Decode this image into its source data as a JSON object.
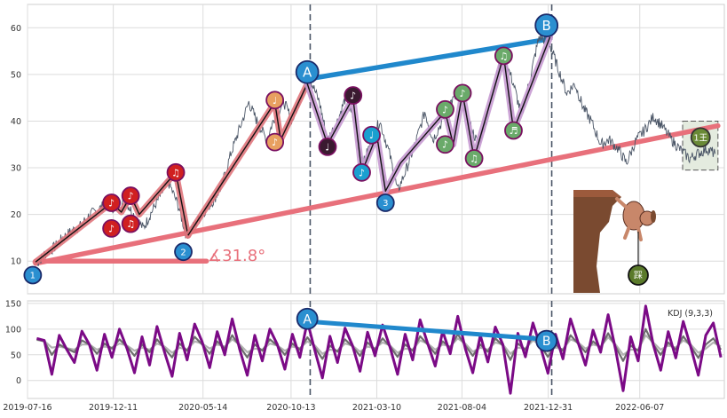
{
  "chart_data": [
    {
      "type": "line",
      "panel": "price",
      "title": "",
      "xlabel": "",
      "ylabel": "",
      "grid": true,
      "ylim": [
        3,
        65
      ],
      "yticks": [
        10,
        20,
        30,
        40,
        50,
        60
      ],
      "series": [
        {
          "role": "price",
          "color": "#4a5566",
          "x": [
            "2019-08-01",
            "2019-08-15",
            "2019-09-01",
            "2019-09-15",
            "2019-10-01",
            "2019-10-15",
            "2019-11-01",
            "2019-11-15",
            "2019-12-01",
            "2019-12-15",
            "2020-01-01",
            "2020-01-15",
            "2020-02-01",
            "2020-02-15",
            "2020-03-01",
            "2020-03-15",
            "2020-04-01",
            "2020-04-15",
            "2020-05-01",
            "2020-05-15",
            "2020-06-01",
            "2020-06-15",
            "2020-07-01",
            "2020-07-15",
            "2020-08-01",
            "2020-08-15",
            "2020-09-01",
            "2020-09-15",
            "2020-10-01",
            "2020-10-15",
            "2020-11-01",
            "2020-11-15",
            "2020-12-01",
            "2020-12-15",
            "2021-01-01",
            "2021-01-15",
            "2021-02-01",
            "2021-02-15",
            "2021-03-01",
            "2021-03-15",
            "2021-04-01",
            "2021-04-15",
            "2021-05-01",
            "2021-05-15",
            "2021-06-01",
            "2021-06-15",
            "2021-07-01",
            "2021-07-15",
            "2021-08-01",
            "2021-08-15",
            "2021-09-01",
            "2021-09-15",
            "2021-10-01",
            "2021-10-15",
            "2021-11-01",
            "2021-11-15",
            "2021-12-01",
            "2021-12-15",
            "2022-01-01",
            "2022-01-15",
            "2022-02-01",
            "2022-02-15",
            "2022-03-01",
            "2022-03-15",
            "2022-04-01",
            "2022-04-15",
            "2022-05-01",
            "2022-05-15",
            "2022-06-01",
            "2022-06-15",
            "2022-07-01",
            "2022-07-15",
            "2022-08-01",
            "2022-08-15",
            "2022-09-01",
            "2022-09-15",
            "2022-10-01",
            "2022-10-15"
          ],
          "values": [
            9.5,
            11.5,
            13,
            15,
            16.5,
            17.5,
            20,
            21,
            22.5,
            21,
            23,
            20,
            17,
            20.5,
            24,
            27,
            22,
            15.5,
            18,
            20.5,
            23,
            26,
            33,
            38,
            44,
            40,
            36,
            41,
            44,
            40,
            46,
            49,
            44,
            36,
            40,
            45,
            39,
            31,
            36,
            40,
            33,
            25,
            30,
            35,
            42,
            36,
            40,
            44,
            46,
            40,
            35,
            40,
            50,
            54,
            48,
            41,
            50,
            58,
            57,
            52,
            46,
            48,
            43,
            40,
            35,
            36,
            34,
            31,
            36,
            38,
            41,
            39,
            36,
            34,
            32,
            33,
            34,
            33
          ]
        }
      ],
      "waves": [
        {
          "role": "wave-red",
          "color": "#e0767c",
          "x": [
            "2019-07-30",
            "2019-12-08",
            "2019-12-25",
            "2020-01-10",
            "2020-01-25",
            "2020-03-28",
            "2020-04-18"
          ],
          "values": [
            9.8,
            22.5,
            20.5,
            24,
            20,
            29,
            15.5
          ]
        },
        {
          "role": "wave-red",
          "color": "#e0767c",
          "x": [
            "2020-04-18",
            "2020-09-15",
            "2020-09-25",
            "2020-11-10"
          ],
          "values": [
            15.5,
            44,
            36,
            48
          ]
        },
        {
          "role": "wave-purple",
          "color": "#c69ad1",
          "x": [
            "2020-11-10",
            "2020-12-15",
            "2021-01-28",
            "2021-02-12",
            "2021-03-10",
            "2021-03-25",
            "2021-04-20",
            "2021-07-06",
            "2021-07-20",
            "2021-08-05",
            "2021-08-25",
            "2021-10-15",
            "2021-11-01",
            "2022-01-03"
          ],
          "values": [
            48,
            35,
            45,
            29,
            37,
            25,
            31,
            42,
            35,
            46,
            32,
            54,
            38,
            58
          ]
        }
      ],
      "trendlines": [
        {
          "role": "support",
          "color": "#e8707b",
          "x": [
            "2019-07-30",
            "2022-10-20"
          ],
          "values": [
            9.5,
            39
          ]
        },
        {
          "role": "resistance",
          "color": "#2088cc",
          "x": [
            "2020-11-10",
            "2021-12-28"
          ],
          "values": [
            49,
            57.5
          ]
        },
        {
          "role": "angle-base",
          "color": "#e8707b",
          "x": [
            "2019-07-30",
            "2020-05-20"
          ],
          "values": [
            10,
            10
          ]
        }
      ],
      "vertical_lines": [
        {
          "x": "2020-11-15",
          "color": "#4a5566"
        },
        {
          "x": "2022-01-06",
          "color": "#4a5566"
        }
      ],
      "point_labels": [
        {
          "text": "A",
          "x": "2020-11-10",
          "y": 50.5,
          "color": "#2a8fd0"
        },
        {
          "text": "B",
          "x": "2021-12-28",
          "y": 60.5,
          "color": "#2a8fd0"
        },
        {
          "text": "1",
          "x": "2019-07-25",
          "y": 7,
          "color": "#2a8fd0"
        },
        {
          "text": "2",
          "x": "2020-04-10",
          "y": 12,
          "color": "#2a8fd0"
        },
        {
          "text": "3",
          "x": "2021-03-25",
          "y": 22.5,
          "color": "#2a8fd0"
        }
      ],
      "note_markers": [
        {
          "text": "♪",
          "x": "2019-12-08",
          "y": 22.5,
          "color": "#d02020"
        },
        {
          "text": "♪",
          "x": "2019-12-08",
          "y": 17,
          "color": "#d02020"
        },
        {
          "text": "♪",
          "x": "2020-01-10",
          "y": 24,
          "color": "#d02020"
        },
        {
          "text": "♫",
          "x": "2020-01-10",
          "y": 18,
          "color": "#d02020"
        },
        {
          "text": "♫",
          "x": "2020-03-28",
          "y": 29,
          "color": "#d02020"
        },
        {
          "text": "♩",
          "x": "2020-09-15",
          "y": 44.5,
          "color": "#e8a060"
        },
        {
          "text": "♪",
          "x": "2020-09-15",
          "y": 35.5,
          "color": "#e8a060"
        },
        {
          "text": "♩",
          "x": "2020-12-15",
          "y": 34.5,
          "color": "#3a1a30"
        },
        {
          "text": "♪",
          "x": "2021-01-28",
          "y": 45.5,
          "color": "#3a1a30"
        },
        {
          "text": "♪",
          "x": "2021-02-12",
          "y": 29,
          "color": "#1aa0d0"
        },
        {
          "text": "♩",
          "x": "2021-03-01",
          "y": 37,
          "color": "#1aa0d0"
        },
        {
          "text": "♪",
          "x": "2021-07-06",
          "y": 42.5,
          "color": "#6aaa6a"
        },
        {
          "text": "♪",
          "x": "2021-07-06",
          "y": 35,
          "color": "#6aaa6a"
        },
        {
          "text": "♪",
          "x": "2021-08-05",
          "y": 46,
          "color": "#6aaa6a"
        },
        {
          "text": "♫",
          "x": "2021-08-25",
          "y": 32,
          "color": "#6aaa6a"
        },
        {
          "text": "♫",
          "x": "2021-10-15",
          "y": 54,
          "color": "#6aaa6a"
        },
        {
          "text": "♬",
          "x": "2021-11-01",
          "y": 38,
          "color": "#6aaa6a"
        }
      ],
      "box": {
        "x": [
          "2022-08-20",
          "2022-10-20"
        ],
        "values": [
          29.5,
          40
        ],
        "color": "#e4ebdf"
      },
      "sticker_labels": [
        "1王",
        "踩"
      ],
      "angle_label": "∡31.8°",
      "angle_color": "#e8707b"
    },
    {
      "type": "line",
      "panel": "kdj",
      "title": "",
      "xlabel": "",
      "ylabel": "",
      "grid": true,
      "legend": "KDJ (9,3,3)",
      "legend_position": "top-right",
      "ylim": [
        -35,
        155
      ],
      "yticks": [
        0,
        50,
        100,
        150
      ],
      "x_ticks": [
        "2019-07-16",
        "2019-12-11",
        "2020-05-14",
        "2020-10-13",
        "2021-03-10",
        "2021-08-04",
        "2021-12-31",
        "2022-06-07"
      ],
      "x_range": [
        "2019-07-16",
        "2022-10-31"
      ],
      "series": [
        {
          "role": "J",
          "color": "#7b0a86",
          "x_start": "2019-08-01",
          "x_end": "2022-10-25",
          "values": [
            82,
            78,
            12,
            88,
            60,
            35,
            96,
            70,
            20,
            90,
            45,
            100,
            62,
            15,
            85,
            30,
            105,
            55,
            8,
            92,
            40,
            110,
            75,
            25,
            95,
            50,
            120,
            60,
            10,
            88,
            38,
            100,
            70,
            22,
            90,
            45,
            115,
            58,
            5,
            86,
            35,
            102,
            68,
            18,
            94,
            48,
            108,
            64,
            12,
            90,
            40,
            118,
            72,
            28,
            96,
            52,
            125,
            62,
            15,
            88,
            36,
            104,
            70,
            -25,
            92,
            46,
            112,
            66,
            14,
            90,
            42,
            120,
            74,
            30,
            98,
            55,
            128,
            60,
            -20,
            85,
            38,
            145,
            70,
            20,
            95,
            44,
            115,
            65,
            10,
            88,
            112,
            45
          ]
        },
        {
          "role": "K",
          "color": "#6d6d6d",
          "x_start": "2019-08-01",
          "x_end": "2022-10-25",
          "values": [
            80,
            76,
            50,
            70,
            62,
            55,
            78,
            70,
            52,
            72,
            62,
            80,
            66,
            48,
            70,
            55,
            80,
            62,
            45,
            72,
            58,
            85,
            70,
            52,
            76,
            62,
            88,
            66,
            45,
            70,
            58,
            80,
            68,
            50,
            72,
            60,
            84,
            64,
            42,
            68,
            56,
            80,
            66,
            48,
            74,
            60,
            82,
            66,
            46,
            70,
            58,
            86,
            70,
            52,
            76,
            64,
            90,
            68,
            48,
            70,
            56,
            82,
            68,
            40,
            72,
            60,
            86,
            68,
            46,
            70,
            58,
            88,
            72,
            55,
            76,
            64,
            92,
            66,
            38,
            68,
            58,
            100,
            70,
            50,
            74,
            60,
            86,
            66,
            44,
            70,
            82,
            60
          ]
        },
        {
          "role": "D",
          "color": "#b3b3b3",
          "x_start": "2019-08-01",
          "x_end": "2022-10-25",
          "values": [
            79,
            77,
            64,
            66,
            63,
            60,
            70,
            70,
            60,
            66,
            64,
            72,
            68,
            58,
            64,
            60,
            72,
            66,
            54,
            64,
            60,
            76,
            72,
            62,
            70,
            66,
            80,
            70,
            55,
            62,
            60,
            72,
            68,
            58,
            66,
            63,
            76,
            68,
            52,
            60,
            58,
            72,
            68,
            56,
            66,
            63,
            74,
            68,
            54,
            62,
            60,
            78,
            72,
            60,
            70,
            66,
            82,
            72,
            56,
            64,
            60,
            74,
            70,
            52,
            64,
            62,
            78,
            70,
            56,
            64,
            61,
            80,
            74,
            62,
            70,
            66,
            84,
            70,
            50,
            60,
            60,
            88,
            74,
            60,
            68,
            64,
            78,
            70,
            54,
            62,
            74,
            66
          ]
        }
      ],
      "trendline": {
        "color": "#2088cc",
        "x": [
          "2020-11-10",
          "2021-12-28"
        ],
        "values": [
          115,
          80
        ]
      },
      "vertical_lines": [
        {
          "x": "2020-11-15",
          "color": "#4a5566"
        },
        {
          "x": "2022-01-06",
          "color": "#4a5566"
        }
      ],
      "point_labels": [
        {
          "text": "A",
          "x": "2020-11-10",
          "y": 120,
          "color": "#2a8fd0"
        },
        {
          "text": "B",
          "x": "2021-12-28",
          "y": 77,
          "color": "#2a8fd0"
        }
      ]
    }
  ]
}
